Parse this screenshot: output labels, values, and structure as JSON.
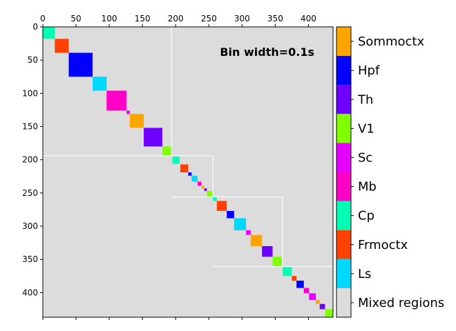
{
  "chart_data": {
    "type": "heatmap",
    "title": "",
    "xlabel": "",
    "ylabel": "",
    "xlim": [
      0,
      437
    ],
    "ylim": [
      437,
      0
    ],
    "x_ticks": [
      0,
      50,
      100,
      150,
      200,
      250,
      300,
      350,
      400
    ],
    "y_ticks": [
      0,
      50,
      100,
      150,
      200,
      250,
      300,
      350,
      400
    ],
    "annotation": "Bin width=0.1s",
    "background_category": "Mixed regions",
    "colorbar": {
      "position": "right",
      "categories": [
        {
          "label": "Sommoctx",
          "color": "#ffa500"
        },
        {
          "label": "Hpf",
          "color": "#0000ff"
        },
        {
          "label": "Th",
          "color": "#6e00ff"
        },
        {
          "label": "V1",
          "color": "#80ff00"
        },
        {
          "label": "Sc",
          "color": "#e600ff"
        },
        {
          "label": "Mb",
          "color": "#ff00c8"
        },
        {
          "label": "Cp",
          "color": "#00ffb4"
        },
        {
          "label": "Frmoctx",
          "color": "#ff4000"
        },
        {
          "label": "Ls",
          "color": "#00d9ff"
        },
        {
          "label": "Mixed regions",
          "color": "#dcdcdc"
        }
      ]
    },
    "blocks": [
      {
        "region": "Cp",
        "start": 0,
        "end": 18
      },
      {
        "region": "Frmoctx",
        "start": 18,
        "end": 39
      },
      {
        "region": "Hpf",
        "start": 39,
        "end": 75
      },
      {
        "region": "Ls",
        "start": 75,
        "end": 96
      },
      {
        "region": "Mb",
        "start": 96,
        "end": 126
      },
      {
        "region": "Sc",
        "start": 126,
        "end": 131
      },
      {
        "region": "Sommoctx",
        "start": 131,
        "end": 152
      },
      {
        "region": "Th",
        "start": 152,
        "end": 180
      },
      {
        "region": "V1",
        "start": 180,
        "end": 193
      },
      {
        "region": "Cp",
        "start": 195,
        "end": 206
      },
      {
        "region": "Frmoctx",
        "start": 207,
        "end": 219
      },
      {
        "region": "Hpf",
        "start": 219,
        "end": 224
      },
      {
        "region": "Ls",
        "start": 224,
        "end": 233
      },
      {
        "region": "Mb",
        "start": 233,
        "end": 239
      },
      {
        "region": "Sommoctx",
        "start": 239,
        "end": 243
      },
      {
        "region": "Th",
        "start": 243,
        "end": 247
      },
      {
        "region": "V1",
        "start": 247,
        "end": 255
      },
      {
        "region": "Cp",
        "start": 256,
        "end": 262
      },
      {
        "region": "Frmoctx",
        "start": 262,
        "end": 277
      },
      {
        "region": "Hpf",
        "start": 277,
        "end": 288
      },
      {
        "region": "Ls",
        "start": 288,
        "end": 306
      },
      {
        "region": "Sc",
        "start": 306,
        "end": 313
      },
      {
        "region": "Sommoctx",
        "start": 313,
        "end": 330
      },
      {
        "region": "Th",
        "start": 330,
        "end": 346
      },
      {
        "region": "V1",
        "start": 346,
        "end": 360
      },
      {
        "region": "Cp",
        "start": 361,
        "end": 375
      },
      {
        "region": "Frmoctx",
        "start": 375,
        "end": 382
      },
      {
        "region": "Hpf",
        "start": 382,
        "end": 393
      },
      {
        "region": "Mb",
        "start": 393,
        "end": 401
      },
      {
        "region": "Sc",
        "start": 401,
        "end": 411
      },
      {
        "region": "Sommoctx",
        "start": 411,
        "end": 417
      },
      {
        "region": "Th",
        "start": 417,
        "end": 425
      },
      {
        "region": "V1",
        "start": 425,
        "end": 437
      }
    ],
    "outlines": [
      {
        "start": 0,
        "end": 194
      },
      {
        "start": 194,
        "end": 256
      },
      {
        "start": 256,
        "end": 361
      },
      {
        "start": 361,
        "end": 437
      }
    ]
  }
}
